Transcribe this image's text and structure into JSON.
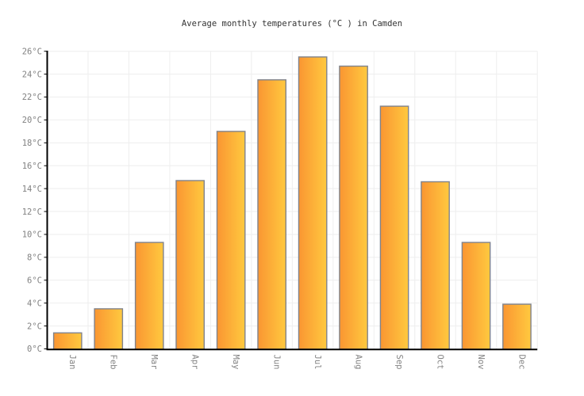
{
  "chart_data": {
    "type": "bar",
    "title": "Average monthly temperatures (°C ) in Camden",
    "categories": [
      "Jan",
      "Feb",
      "Mar",
      "Apr",
      "May",
      "Jun",
      "Jul",
      "Aug",
      "Sep",
      "Oct",
      "Nov",
      "Dec"
    ],
    "values": [
      1.4,
      3.5,
      9.3,
      14.7,
      19,
      23.5,
      25.5,
      24.7,
      21.2,
      14.6,
      9.3,
      3.9
    ],
    "xlabel": "",
    "ylabel": "",
    "ylim": [
      0,
      26
    ],
    "ytick_step": 2,
    "ytick_labels": [
      "0°C",
      "2°C",
      "4°C",
      "6°C",
      "8°C",
      "10°C",
      "12°C",
      "14°C",
      "16°C",
      "18°C",
      "20°C",
      "22°C",
      "24°C",
      "26°C"
    ],
    "grid": true,
    "legend": false,
    "colors": {
      "bar_gradient_left": "#FA9632",
      "bar_gradient_right": "#FFC93F",
      "bar_border": "#80838C",
      "gridline": "#EEEEEE",
      "axis": "#000000",
      "tick_label": "#828282",
      "title_text": "#333333",
      "background": "#FFFFFF"
    }
  }
}
